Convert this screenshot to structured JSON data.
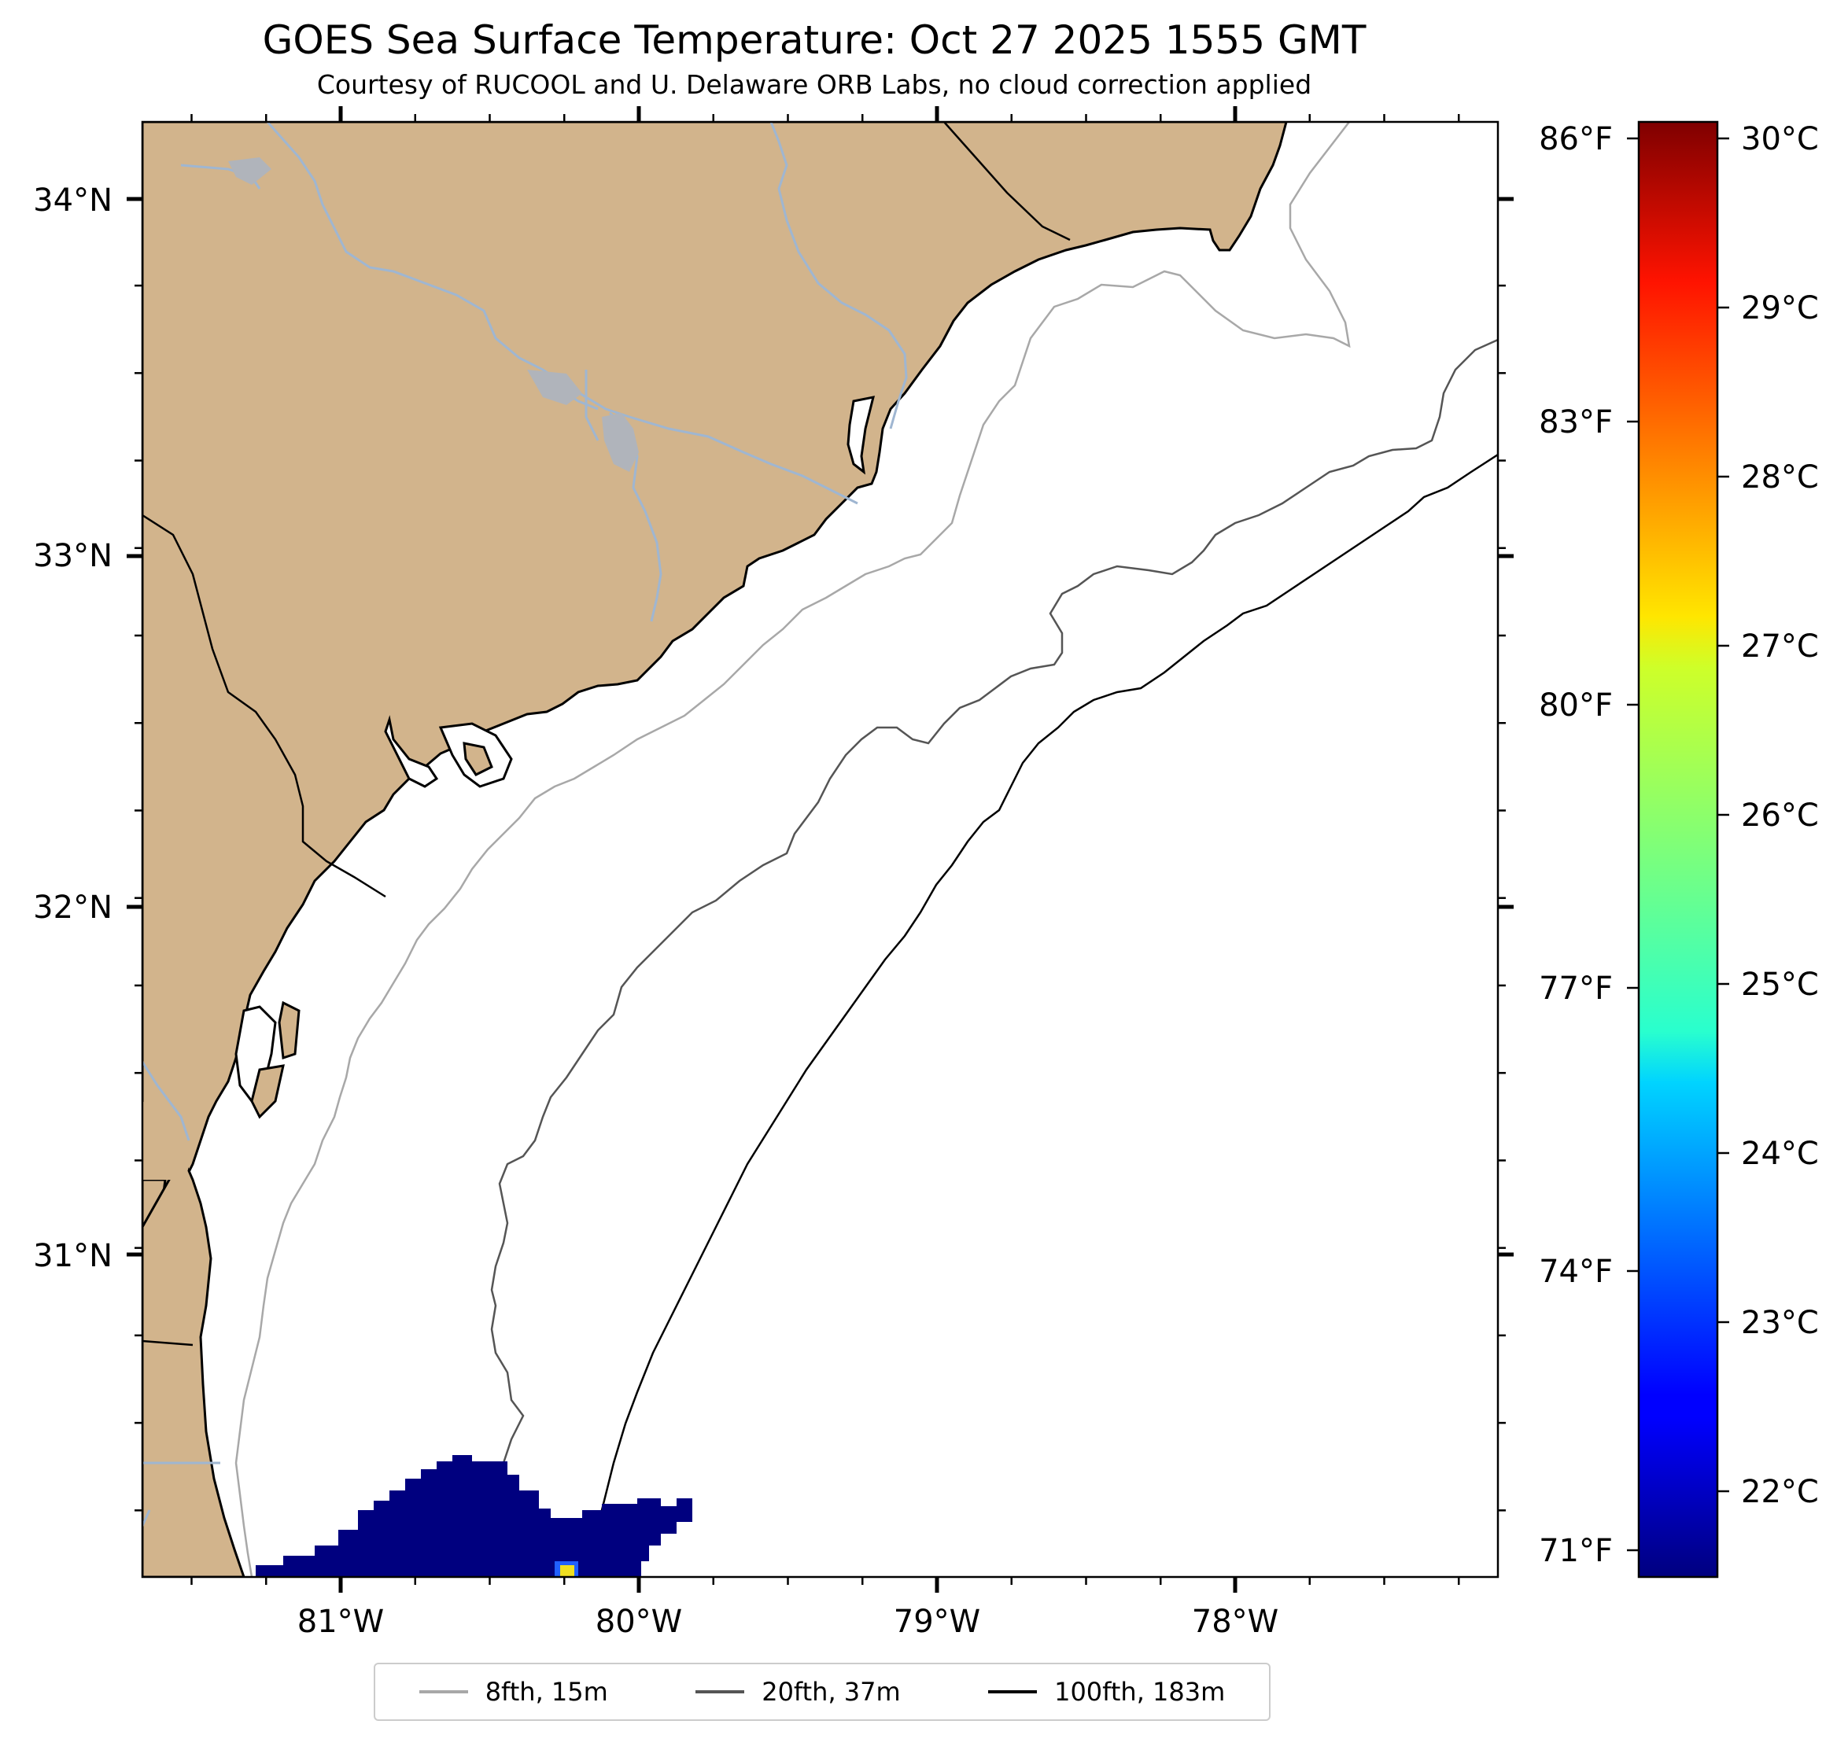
{
  "title": "GOES Sea Surface Temperature: Oct 27 2025 1555 GMT",
  "subtitle": "Courtesy of RUCOOL and U. Delaware ORB Labs, no cloud correction applied",
  "colors": {
    "land": "#d2b48c",
    "rivers": "#9fb6d1",
    "isobath_8fth": "#a8a8a8",
    "isobath_20fth": "#555555",
    "isobath_100fth": "#000000",
    "sst_patch": "#00007f"
  },
  "map_extent": {
    "lon_min": -81.67,
    "lon_max": -77.12,
    "lat_min": 30.09,
    "lat_max": 34.22
  },
  "axes": {
    "lat_labels": [
      "34°N",
      "33°N",
      "32°N",
      "31°N"
    ],
    "lon_labels": [
      "81°W",
      "80°W",
      "79°W",
      "78°W"
    ]
  },
  "colorbar": {
    "cmap": "jet",
    "range_c": [
      21.6,
      30.2
    ],
    "celsius_labels": [
      "30°C",
      "29°C",
      "28°C",
      "27°C",
      "26°C",
      "25°C",
      "24°C",
      "23°C",
      "22°C"
    ],
    "fahrenheit_labels": [
      "86°F",
      "83°F",
      "80°F",
      "77°F",
      "74°F",
      "71°F"
    ]
  },
  "legend": [
    {
      "label": "8fth, 15m",
      "color": "#a8a8a8"
    },
    {
      "label": "20fth, 37m",
      "color": "#555555"
    },
    {
      "label": "100fth, 183m",
      "color": "#000000"
    }
  ]
}
